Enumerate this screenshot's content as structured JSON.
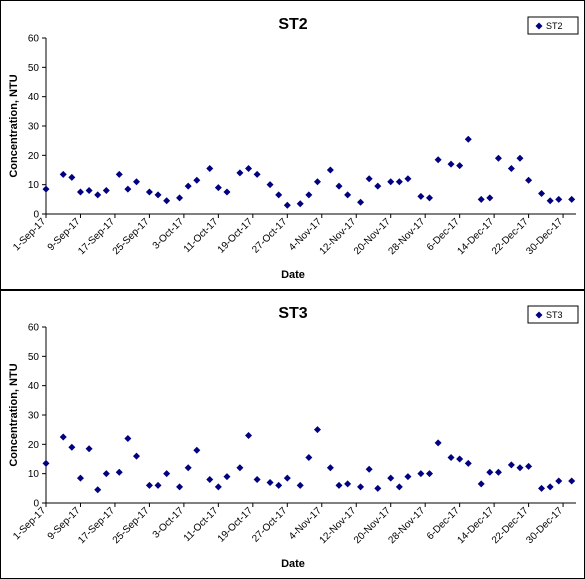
{
  "colors": {
    "marker": "#000080",
    "axis": "#000000",
    "background": "#ffffff"
  },
  "chart_data": [
    {
      "type": "scatter",
      "title": "ST2",
      "xlabel": "Date",
      "ylabel": "Concentration, NTU",
      "ylim": [
        0,
        60
      ],
      "yticks": [
        0,
        10,
        20,
        30,
        40,
        50,
        60
      ],
      "xlim": [
        "2017-09-01",
        "2018-01-02"
      ],
      "xtick_dates": [
        "2017-09-01",
        "2017-09-09",
        "2017-09-17",
        "2017-09-25",
        "2017-10-03",
        "2017-10-11",
        "2017-10-19",
        "2017-10-27",
        "2017-11-04",
        "2017-11-12",
        "2017-11-20",
        "2017-11-28",
        "2017-12-06",
        "2017-12-14",
        "2017-12-22",
        "2017-12-30"
      ],
      "xtick_labels": [
        "1-Sep-17",
        "9-Sep-17",
        "17-Sep-17",
        "25-Sep-17",
        "3-Oct-17",
        "11-Oct-17",
        "19-Oct-17",
        "27-Oct-17",
        "4-Nov-17",
        "12-Nov-17",
        "20-Nov-17",
        "28-Nov-17",
        "6-Dec-17",
        "14-Dec-17",
        "22-Dec-17",
        "30-Dec-17"
      ],
      "legend": "top-right",
      "grid": false,
      "series": [
        {
          "name": "ST2",
          "x": [
            "2017-09-01",
            "2017-09-05",
            "2017-09-07",
            "2017-09-09",
            "2017-09-11",
            "2017-09-13",
            "2017-09-15",
            "2017-09-18",
            "2017-09-20",
            "2017-09-22",
            "2017-09-25",
            "2017-09-27",
            "2017-09-29",
            "2017-10-02",
            "2017-10-04",
            "2017-10-06",
            "2017-10-09",
            "2017-10-11",
            "2017-10-13",
            "2017-10-16",
            "2017-10-18",
            "2017-10-20",
            "2017-10-23",
            "2017-10-25",
            "2017-10-27",
            "2017-10-30",
            "2017-11-01",
            "2017-11-03",
            "2017-11-06",
            "2017-11-08",
            "2017-11-10",
            "2017-11-13",
            "2017-11-15",
            "2017-11-17",
            "2017-11-20",
            "2017-11-22",
            "2017-11-24",
            "2017-11-27",
            "2017-11-29",
            "2017-12-01",
            "2017-12-04",
            "2017-12-06",
            "2017-12-08",
            "2017-12-11",
            "2017-12-13",
            "2017-12-15",
            "2017-12-18",
            "2017-12-20",
            "2017-12-22",
            "2017-12-25",
            "2017-12-27",
            "2017-12-29",
            "2018-01-01"
          ],
          "values": [
            8.5,
            13.5,
            12.5,
            7.5,
            8,
            6.5,
            8,
            13.5,
            8.5,
            11,
            7.5,
            6.5,
            4.5,
            5.5,
            9.5,
            11.5,
            15.5,
            9,
            7.5,
            14,
            15.5,
            13.5,
            10,
            6.5,
            3,
            3.5,
            6.5,
            11,
            15,
            9.5,
            6.5,
            4,
            12,
            9.5,
            11,
            11,
            12,
            6,
            5.5,
            18.5,
            17,
            16.5,
            25.5,
            5,
            5.5,
            19,
            15.5,
            19,
            11.5,
            7,
            4.5,
            5,
            5
          ]
        }
      ]
    },
    {
      "type": "scatter",
      "title": "ST3",
      "xlabel": "Date",
      "ylabel": "Concentration, NTU",
      "ylim": [
        0,
        60
      ],
      "yticks": [
        0,
        10,
        20,
        30,
        40,
        50,
        60
      ],
      "xlim": [
        "2017-09-01",
        "2018-01-02"
      ],
      "xtick_dates": [
        "2017-09-01",
        "2017-09-09",
        "2017-09-17",
        "2017-09-25",
        "2017-10-03",
        "2017-10-11",
        "2017-10-19",
        "2017-10-27",
        "2017-11-04",
        "2017-11-12",
        "2017-11-20",
        "2017-11-28",
        "2017-12-06",
        "2017-12-14",
        "2017-12-22",
        "2017-12-30"
      ],
      "xtick_labels": [
        "1-Sep-17",
        "9-Sep-17",
        "17-Sep-17",
        "25-Sep-17",
        "3-Oct-17",
        "11-Oct-17",
        "19-Oct-17",
        "27-Oct-17",
        "4-Nov-17",
        "12-Nov-17",
        "20-Nov-17",
        "28-Nov-17",
        "6-Dec-17",
        "14-Dec-17",
        "22-Dec-17",
        "30-Dec-17"
      ],
      "legend": "top-right",
      "grid": false,
      "series": [
        {
          "name": "ST3",
          "x": [
            "2017-09-01",
            "2017-09-05",
            "2017-09-07",
            "2017-09-09",
            "2017-09-11",
            "2017-09-13",
            "2017-09-15",
            "2017-09-18",
            "2017-09-20",
            "2017-09-22",
            "2017-09-25",
            "2017-09-27",
            "2017-09-29",
            "2017-10-02",
            "2017-10-04",
            "2017-10-06",
            "2017-10-09",
            "2017-10-11",
            "2017-10-13",
            "2017-10-16",
            "2017-10-18",
            "2017-10-20",
            "2017-10-23",
            "2017-10-25",
            "2017-10-27",
            "2017-10-30",
            "2017-11-01",
            "2017-11-03",
            "2017-11-06",
            "2017-11-08",
            "2017-11-10",
            "2017-11-13",
            "2017-11-15",
            "2017-11-17",
            "2017-11-20",
            "2017-11-22",
            "2017-11-24",
            "2017-11-27",
            "2017-11-29",
            "2017-12-01",
            "2017-12-04",
            "2017-12-06",
            "2017-12-08",
            "2017-12-11",
            "2017-12-13",
            "2017-12-15",
            "2017-12-18",
            "2017-12-20",
            "2017-12-22",
            "2017-12-25",
            "2017-12-27",
            "2017-12-29",
            "2018-01-01"
          ],
          "values": [
            13.5,
            22.5,
            19,
            8.5,
            18.5,
            4.5,
            10,
            10.5,
            22,
            16,
            6,
            6,
            10,
            5.5,
            12,
            18,
            8,
            5.5,
            9,
            12,
            23,
            8,
            7,
            6,
            8.5,
            6,
            15.5,
            25,
            12,
            6,
            6.5,
            5.5,
            11.5,
            5,
            8.5,
            5.5,
            9,
            10,
            10,
            20.5,
            15.5,
            15,
            13.5,
            6.5,
            10.5,
            10.5,
            13,
            12,
            12.5,
            5,
            5.5,
            7.5,
            7.5
          ]
        }
      ]
    }
  ]
}
